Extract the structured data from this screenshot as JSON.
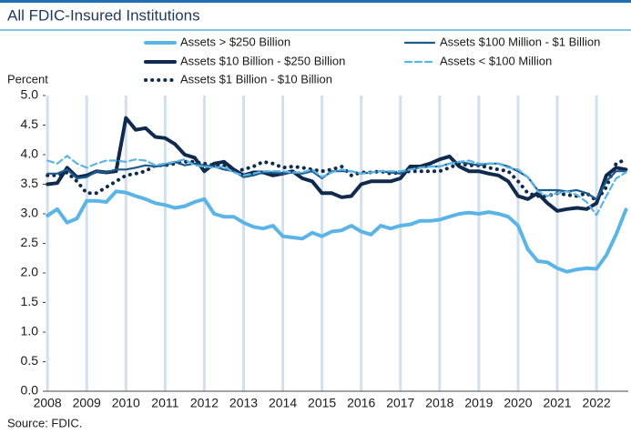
{
  "chart_data": {
    "type": "line",
    "title": "All FDIC-Insured Institutions",
    "y_label": "Percent",
    "source": "Source: FDIC.",
    "x": [
      2008,
      2008.25,
      2008.5,
      2008.75,
      2009,
      2009.25,
      2009.5,
      2009.75,
      2010,
      2010.25,
      2010.5,
      2010.75,
      2011,
      2011.25,
      2011.5,
      2011.75,
      2012,
      2012.25,
      2012.5,
      2012.75,
      2013,
      2013.25,
      2013.5,
      2013.75,
      2014,
      2014.25,
      2014.5,
      2014.75,
      2015,
      2015.25,
      2015.5,
      2015.75,
      2016,
      2016.25,
      2016.5,
      2016.75,
      2017,
      2017.25,
      2017.5,
      2017.75,
      2018,
      2018.25,
      2018.5,
      2018.75,
      2019,
      2019.25,
      2019.5,
      2019.75,
      2020,
      2020.25,
      2020.5,
      2020.75,
      2021,
      2021.25,
      2021.5,
      2021.75,
      2022,
      2022.25,
      2022.5,
      2022.75
    ],
    "xlim": [
      2007.95,
      2022.81
    ],
    "xticks": [
      2008,
      2009,
      2010,
      2011,
      2012,
      2013,
      2014,
      2015,
      2016,
      2017,
      2018,
      2019,
      2020,
      2021,
      2022
    ],
    "ylim": [
      0,
      5
    ],
    "yticks": [
      {
        "value": 0,
        "label": "0.0"
      },
      0.5,
      {
        "value": 1,
        "label": "1.0"
      },
      1.5,
      {
        "value": 2,
        "label": "2.0"
      },
      2.5,
      {
        "value": 3,
        "label": "3.0"
      },
      3.5,
      {
        "value": 4,
        "label": "4.0"
      },
      4.5,
      {
        "value": 5,
        "label": "5.0"
      }
    ],
    "grid": true,
    "series": [
      {
        "name": "Assets > $250 Billion",
        "color": "#5ab4e6",
        "style": "solid",
        "width": 4,
        "values": [
          2.97,
          3.08,
          2.85,
          2.92,
          3.22,
          3.22,
          3.2,
          3.38,
          3.36,
          3.3,
          3.25,
          3.18,
          3.15,
          3.1,
          3.13,
          3.2,
          3.25,
          3.0,
          2.95,
          2.95,
          2.85,
          2.78,
          2.75,
          2.8,
          2.62,
          2.6,
          2.58,
          2.68,
          2.62,
          2.7,
          2.72,
          2.8,
          2.7,
          2.65,
          2.8,
          2.75,
          2.8,
          2.82,
          2.88,
          2.88,
          2.9,
          2.95,
          3.0,
          3.02,
          3.0,
          3.03,
          3.0,
          2.95,
          2.8,
          2.4,
          2.2,
          2.18,
          2.08,
          2.02,
          2.06,
          2.08,
          2.07,
          2.3,
          2.65,
          3.07
        ]
      },
      {
        "name": "Assets $10 Billion - $250 Billion",
        "color": "#0f2a4d",
        "style": "solid",
        "width": 4,
        "values": [
          3.5,
          3.52,
          3.78,
          3.62,
          3.65,
          3.72,
          3.7,
          3.72,
          4.62,
          4.42,
          4.45,
          4.3,
          4.28,
          4.18,
          4.0,
          3.95,
          3.72,
          3.85,
          3.88,
          3.75,
          3.65,
          3.7,
          3.7,
          3.65,
          3.68,
          3.72,
          3.6,
          3.55,
          3.35,
          3.35,
          3.28,
          3.3,
          3.5,
          3.55,
          3.55,
          3.55,
          3.6,
          3.8,
          3.8,
          3.85,
          3.92,
          3.97,
          3.8,
          3.72,
          3.72,
          3.68,
          3.65,
          3.55,
          3.3,
          3.25,
          3.35,
          3.18,
          3.05,
          3.08,
          3.1,
          3.08,
          3.18,
          3.65,
          3.78,
          3.75
        ]
      },
      {
        "name": "Assets $1 Billion - $10 Billion",
        "color": "#0f2a4d",
        "style": "dotted",
        "width": 4,
        "values": [
          3.65,
          3.65,
          3.7,
          3.55,
          3.35,
          3.35,
          3.45,
          3.55,
          3.65,
          3.68,
          3.72,
          3.82,
          3.82,
          3.85,
          3.88,
          3.88,
          3.85,
          3.82,
          3.82,
          3.72,
          3.75,
          3.8,
          3.88,
          3.85,
          3.78,
          3.8,
          3.78,
          3.75,
          3.72,
          3.75,
          3.8,
          3.65,
          3.7,
          3.7,
          3.72,
          3.68,
          3.7,
          3.72,
          3.72,
          3.72,
          3.72,
          3.78,
          3.85,
          3.82,
          3.82,
          3.78,
          3.75,
          3.72,
          3.55,
          3.35,
          3.3,
          3.3,
          3.35,
          3.32,
          3.3,
          3.35,
          3.22,
          3.45,
          3.85,
          3.92
        ]
      },
      {
        "name": "Assets $100 Million - $1 Billion",
        "color": "#1b5a8c",
        "style": "solid",
        "width": 2.2,
        "values": [
          3.68,
          3.68,
          3.75,
          3.6,
          3.62,
          3.72,
          3.7,
          3.75,
          3.75,
          3.78,
          3.82,
          3.8,
          3.82,
          3.88,
          3.82,
          3.85,
          3.82,
          3.8,
          3.75,
          3.72,
          3.62,
          3.65,
          3.7,
          3.7,
          3.68,
          3.7,
          3.68,
          3.72,
          3.6,
          3.72,
          3.72,
          3.72,
          3.68,
          3.7,
          3.72,
          3.7,
          3.68,
          3.75,
          3.78,
          3.8,
          3.8,
          3.85,
          3.88,
          3.85,
          3.82,
          3.85,
          3.85,
          3.8,
          3.72,
          3.62,
          3.4,
          3.4,
          3.4,
          3.38,
          3.4,
          3.35,
          3.25,
          3.55,
          3.72,
          3.72
        ]
      },
      {
        "name": "Assets < $100 Million",
        "color": "#5ab4e6",
        "style": "dashed",
        "width": 2.2,
        "values": [
          3.9,
          3.85,
          3.98,
          3.85,
          3.78,
          3.85,
          3.9,
          3.9,
          3.88,
          3.92,
          3.9,
          3.82,
          3.85,
          3.88,
          3.92,
          3.82,
          3.8,
          3.78,
          3.8,
          3.7,
          3.65,
          3.68,
          3.72,
          3.72,
          3.72,
          3.7,
          3.7,
          3.75,
          3.62,
          3.7,
          3.75,
          3.72,
          3.68,
          3.7,
          3.72,
          3.72,
          3.72,
          3.75,
          3.78,
          3.8,
          3.8,
          3.85,
          3.88,
          3.9,
          3.85,
          3.85,
          3.85,
          3.78,
          3.75,
          3.62,
          3.38,
          3.3,
          3.35,
          3.38,
          3.32,
          3.2,
          2.98,
          3.3,
          3.6,
          3.7
        ]
      }
    ]
  }
}
